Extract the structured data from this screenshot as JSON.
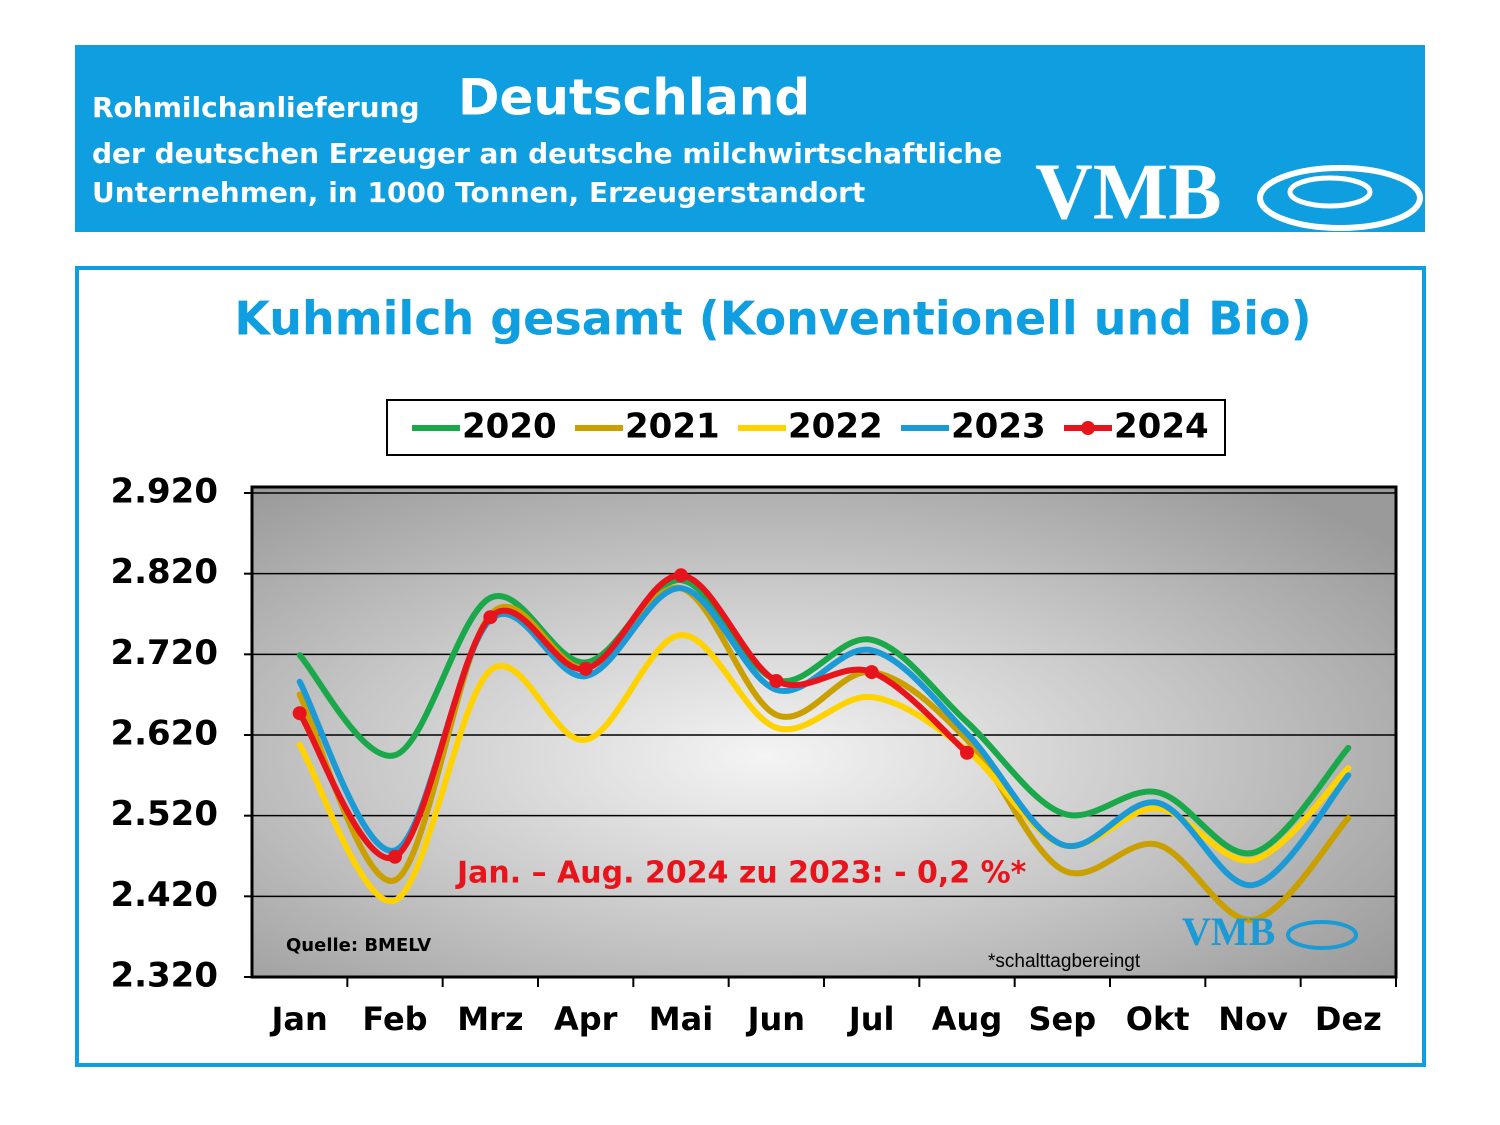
{
  "header": {
    "label": "Rohmilchanlieferung",
    "title": "Deutschland",
    "subtitle_lines": [
      "der deutschen Erzeuger an deutsche milchwirtschaftliche",
      "Unternehmen, in 1000 Tonnen, Erzeugerstandort"
    ],
    "logo": "VMB"
  },
  "chart_data": {
    "type": "line",
    "title": "Kuhmilch gesamt (Konventionell und Bio)",
    "categories": [
      "Jan",
      "Feb",
      "Mrz",
      "Apr",
      "Mai",
      "Jun",
      "Jul",
      "Aug",
      "Sep",
      "Okt",
      "Nov",
      "Dez"
    ],
    "series": [
      {
        "name": "2020",
        "color": "#1aa84b",
        "values": [
          2719,
          2595,
          2790,
          2710,
          2812,
          2688,
          2738,
          2636,
          2523,
          2549,
          2474,
          2604
        ]
      },
      {
        "name": "2021",
        "color": "#c9a000",
        "values": [
          2670,
          2440,
          2769,
          2703,
          2802,
          2645,
          2698,
          2614,
          2453,
          2484,
          2391,
          2517
        ]
      },
      {
        "name": "2022",
        "color": "#ffd200",
        "values": [
          2608,
          2415,
          2700,
          2614,
          2744,
          2629,
          2667,
          2601,
          2484,
          2529,
          2465,
          2579
        ]
      },
      {
        "name": "2023",
        "color": "#1b9ad6",
        "values": [
          2686,
          2477,
          2763,
          2693,
          2802,
          2676,
          2725,
          2622,
          2484,
          2536,
          2434,
          2570
        ]
      },
      {
        "name": "2024",
        "color": "#e8141b",
        "markers": true,
        "values": [
          2647,
          2469,
          2766,
          2702,
          2818,
          2687,
          2698,
          2598,
          null,
          null,
          null,
          null
        ]
      }
    ],
    "ylim": [
      2320,
      2920
    ],
    "yticks": [
      {
        "value": 2320,
        "label": "2.320"
      },
      {
        "value": 2420,
        "label": "2.420"
      },
      {
        "value": 2520,
        "label": "2.520"
      },
      {
        "value": 2620,
        "label": "2.620"
      },
      {
        "value": 2720,
        "label": "2.720"
      },
      {
        "value": 2820,
        "label": "2.820"
      },
      {
        "value": 2920,
        "label": "2.920"
      }
    ],
    "grid": true,
    "annotations": [
      "Jan. – Aug. 2024 zu 2023: - 0,2 %*",
      "Quelle:  BMELV",
      "*schalttagbereingt",
      "VMB"
    ]
  }
}
